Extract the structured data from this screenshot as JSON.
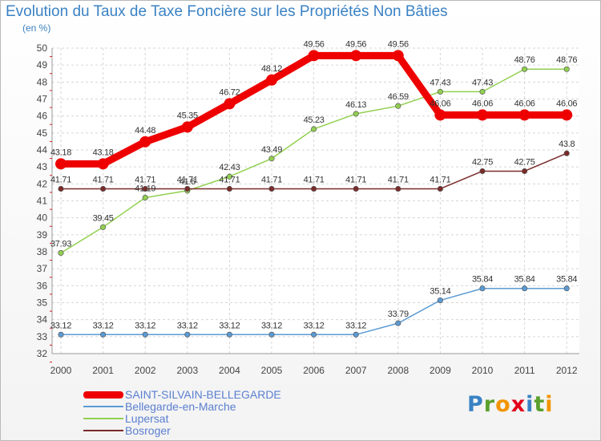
{
  "title": "Evolution du Taux de Taxe Foncière sur les Propriétés Non Bâties",
  "units": "(en %)",
  "logo": {
    "letters": [
      "P",
      "r",
      "o",
      "x",
      "i",
      "t",
      "i"
    ],
    "colors": [
      "#3a82c4",
      "#5aa02c",
      "#f29400",
      "#e2001a",
      "#3a82c4",
      "#5aa02c",
      "#f29400"
    ]
  },
  "chart_data": {
    "type": "line",
    "x": [
      "2000",
      "2001",
      "2002",
      "2003",
      "2004",
      "2005",
      "2006",
      "2007",
      "2008",
      "2009",
      "2010",
      "2011",
      "2012"
    ],
    "ylim": [
      32,
      50
    ],
    "yticks": [
      "32",
      "33",
      "34",
      "35",
      "36",
      "37",
      "38",
      "39",
      "40",
      "41",
      "42",
      "43",
      "44",
      "45",
      "46",
      "47",
      "48",
      "49",
      "50"
    ],
    "grid": true,
    "series": [
      {
        "name": "SAINT-SILVAIN-BELLEGARDE",
        "color": "#ee0000",
        "values": [
          43.18,
          43.18,
          44.48,
          45.35,
          46.72,
          48.12,
          49.56,
          49.56,
          49.56,
          46.06,
          46.06,
          46.06,
          46.06
        ],
        "labels": [
          "43.18",
          "43.18",
          "44.48",
          "45.35",
          "46.72",
          "48.12",
          "49.56",
          "49.56",
          "49.56",
          "46.06",
          "46.06",
          "46.06",
          "46.06"
        ]
      },
      {
        "name": "Bellegarde-en-Marche",
        "color": "#5b9bd5",
        "values": [
          33.12,
          33.12,
          33.12,
          33.12,
          33.12,
          33.12,
          33.12,
          33.12,
          33.79,
          35.14,
          35.84,
          35.84,
          35.84
        ],
        "labels": [
          "33.12",
          "33.12",
          "33.12",
          "33.12",
          "33.12",
          "33.12",
          "33.12",
          "33.12",
          "33.79",
          "35.14",
          "35.84",
          "35.84",
          "35.84"
        ]
      },
      {
        "name": "Lupersat",
        "color": "#92d050",
        "values": [
          37.93,
          39.45,
          41.19,
          41.6,
          42.43,
          43.49,
          45.23,
          46.13,
          46.59,
          47.43,
          47.43,
          48.76,
          48.76
        ],
        "labels": [
          "37.93",
          "39.45",
          "41.19",
          "41.6",
          "42.43",
          "43.49",
          "45.23",
          "46.13",
          "46.59",
          "47.43",
          "47.43",
          "48.76",
          "48.76"
        ]
      },
      {
        "name": "Bosroger",
        "color": "#7b2a2a",
        "values": [
          41.71,
          41.71,
          41.71,
          41.71,
          41.71,
          41.71,
          41.71,
          41.71,
          41.71,
          41.71,
          42.75,
          42.75,
          43.8
        ],
        "labels": [
          "41.71",
          "41.71",
          "41.71",
          "41.71",
          "41.71",
          "41.71",
          "41.71",
          "41.71",
          "41.71",
          "41.71",
          "42.75",
          "42.75",
          "43.8"
        ]
      }
    ]
  }
}
